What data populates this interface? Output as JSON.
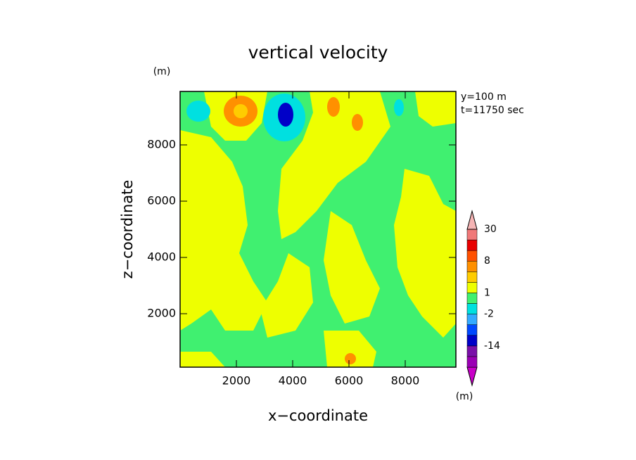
{
  "chart_data": {
    "type": "contour",
    "title": "vertical velocity",
    "x_label": "x−coordinate",
    "y_label": "z−coordinate",
    "y_unit": "(m)",
    "colorbar_unit": "(m)",
    "annotations": [
      "y=100 m",
      "t=11750 sec"
    ],
    "xlim": [
      0,
      9800
    ],
    "ylim": [
      100,
      9900
    ],
    "xticks": [
      2000,
      4000,
      6000,
      8000
    ],
    "yticks": [
      2000,
      4000,
      6000,
      8000
    ],
    "colorbar": {
      "colors": [
        "#c800c8",
        "#9a00b4",
        "#7a10a8",
        "#0000c8",
        "#0048ff",
        "#33aaff",
        "#00e0e0",
        "#40f070",
        "#eeff00",
        "#ffcc00",
        "#ff9000",
        "#ff5000",
        "#e80000",
        "#f07878",
        "#f5b4b4"
      ],
      "labels": [
        -14,
        -2,
        1,
        8,
        30
      ]
    }
  }
}
